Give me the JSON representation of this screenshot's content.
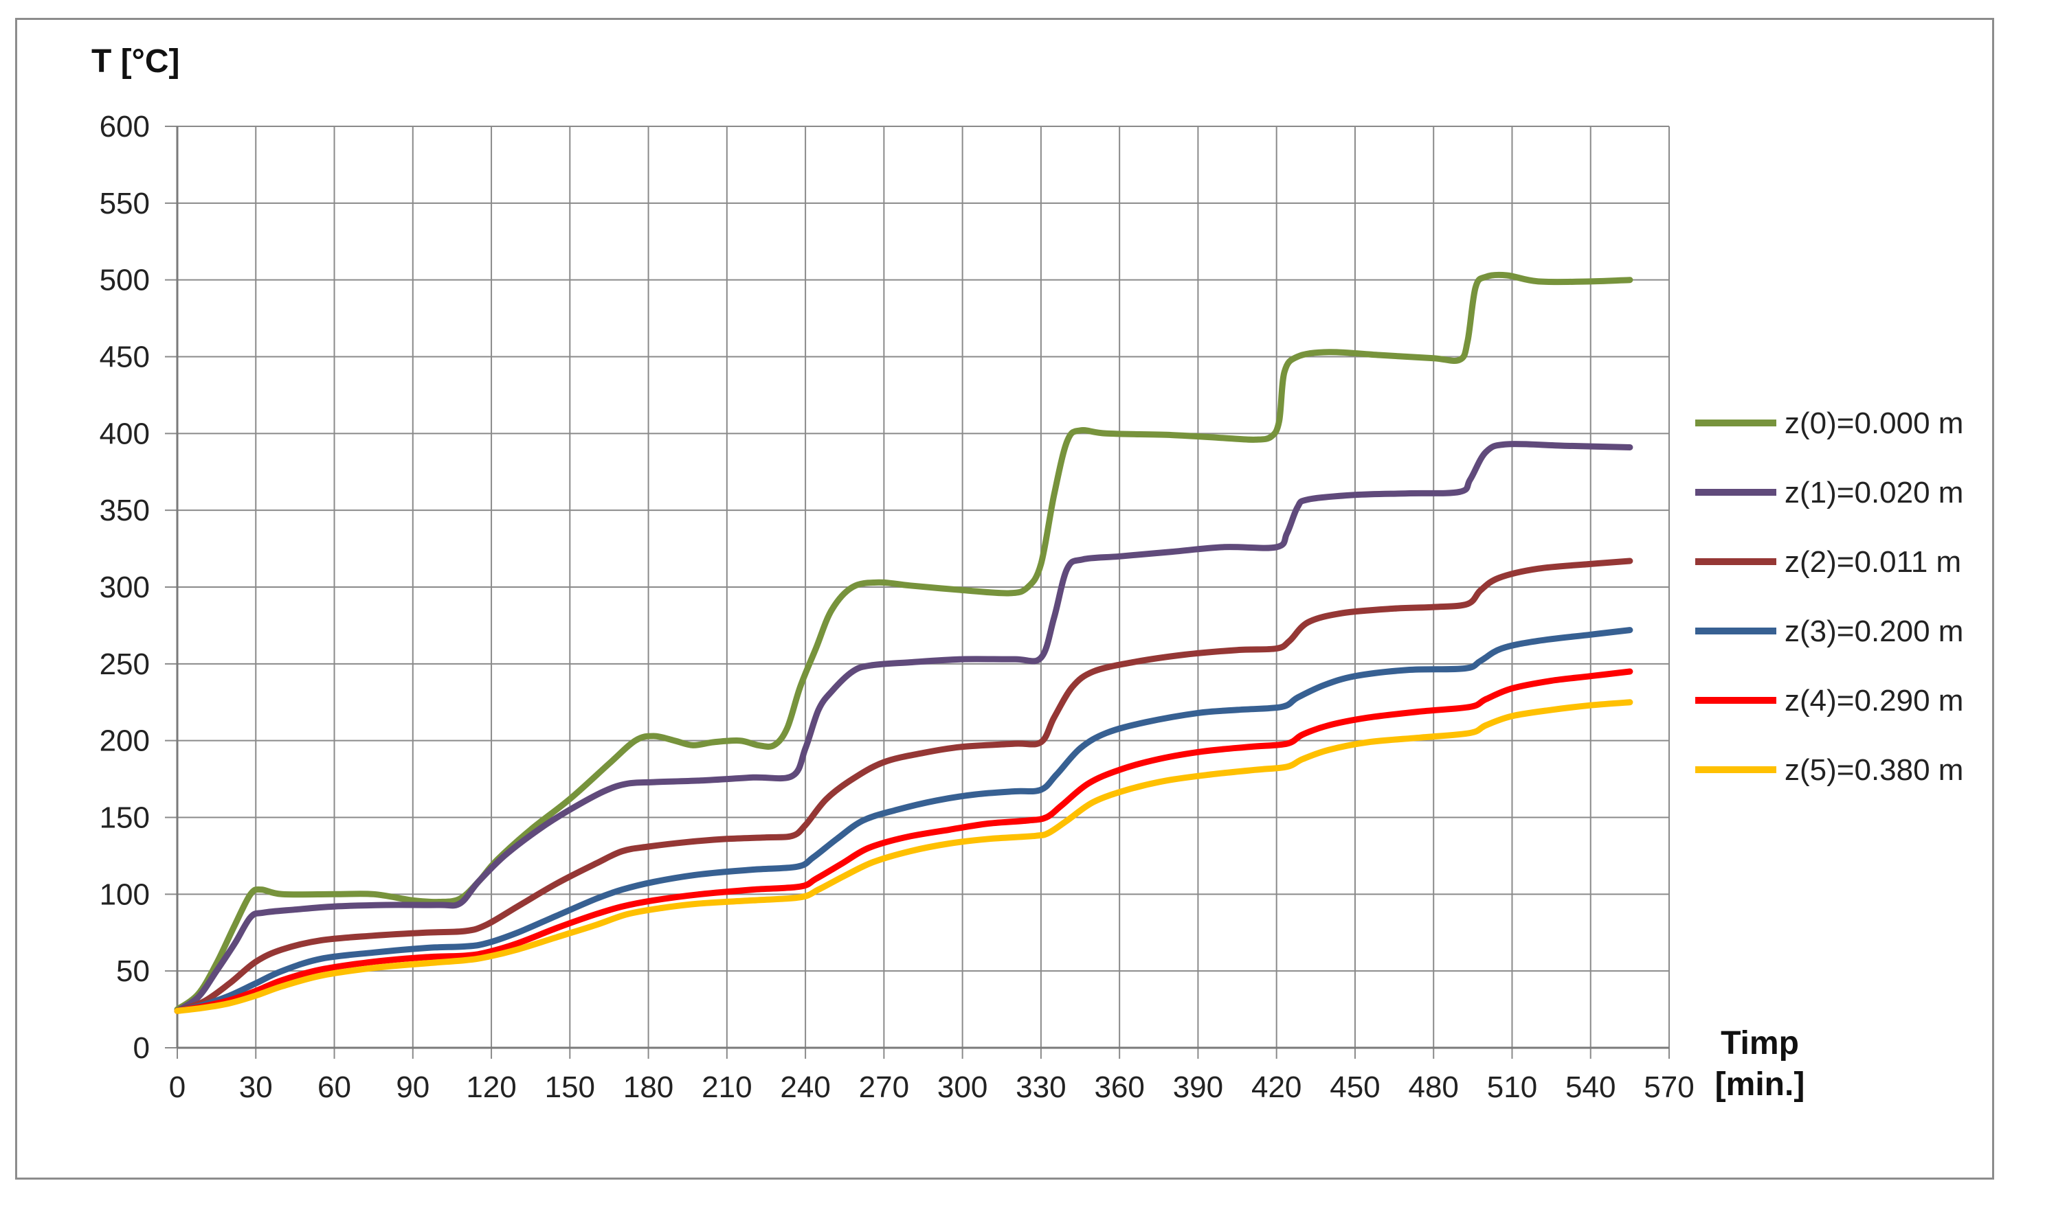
{
  "chart_data": {
    "type": "line",
    "title": "",
    "ylabel": "T [°C]",
    "xlabel_line1": "Timp",
    "xlabel_line2": "[min.]",
    "xlim": [
      0,
      570
    ],
    "ylim": [
      0,
      600
    ],
    "x_ticks": [
      0,
      30,
      60,
      90,
      120,
      150,
      180,
      210,
      240,
      270,
      300,
      330,
      360,
      390,
      420,
      450,
      480,
      510,
      540,
      570
    ],
    "y_ticks": [
      0,
      50,
      100,
      150,
      200,
      250,
      300,
      350,
      400,
      450,
      500,
      550,
      600
    ],
    "grid": true,
    "legend_position": "right",
    "series": [
      {
        "name": "z(0)=0.000 m",
        "color": "#77933C",
        "points": [
          [
            0,
            25
          ],
          [
            8,
            35
          ],
          [
            15,
            55
          ],
          [
            22,
            80
          ],
          [
            28,
            100
          ],
          [
            32,
            103
          ],
          [
            40,
            100
          ],
          [
            60,
            100
          ],
          [
            75,
            100
          ],
          [
            90,
            96
          ],
          [
            100,
            95
          ],
          [
            108,
            97
          ],
          [
            115,
            108
          ],
          [
            122,
            122
          ],
          [
            135,
            142
          ],
          [
            150,
            162
          ],
          [
            165,
            185
          ],
          [
            175,
            200
          ],
          [
            182,
            203
          ],
          [
            190,
            200
          ],
          [
            197,
            197
          ],
          [
            205,
            199
          ],
          [
            215,
            200
          ],
          [
            222,
            197
          ],
          [
            228,
            197
          ],
          [
            233,
            208
          ],
          [
            238,
            235
          ],
          [
            244,
            260
          ],
          [
            250,
            285
          ],
          [
            258,
            300
          ],
          [
            268,
            303
          ],
          [
            280,
            301
          ],
          [
            300,
            298
          ],
          [
            318,
            296
          ],
          [
            325,
            300
          ],
          [
            330,
            315
          ],
          [
            335,
            360
          ],
          [
            340,
            395
          ],
          [
            345,
            402
          ],
          [
            355,
            400
          ],
          [
            380,
            399
          ],
          [
            400,
            397
          ],
          [
            412,
            396
          ],
          [
            418,
            398
          ],
          [
            421,
            408
          ],
          [
            423,
            440
          ],
          [
            428,
            450
          ],
          [
            440,
            453
          ],
          [
            460,
            451
          ],
          [
            480,
            449
          ],
          [
            490,
            448
          ],
          [
            493,
            460
          ],
          [
            496,
            495
          ],
          [
            500,
            502
          ],
          [
            508,
            503
          ],
          [
            520,
            499
          ],
          [
            540,
            499
          ],
          [
            555,
            500
          ]
        ]
      },
      {
        "name": "z(1)=0.020 m",
        "color": "#604A7B",
        "points": [
          [
            0,
            24
          ],
          [
            8,
            33
          ],
          [
            15,
            50
          ],
          [
            22,
            68
          ],
          [
            28,
            85
          ],
          [
            33,
            88
          ],
          [
            45,
            90
          ],
          [
            60,
            92
          ],
          [
            80,
            93
          ],
          [
            100,
            93
          ],
          [
            108,
            94
          ],
          [
            115,
            108
          ],
          [
            125,
            125
          ],
          [
            138,
            142
          ],
          [
            150,
            155
          ],
          [
            163,
            167
          ],
          [
            172,
            172
          ],
          [
            182,
            173
          ],
          [
            200,
            174
          ],
          [
            220,
            176
          ],
          [
            235,
            177
          ],
          [
            240,
            195
          ],
          [
            245,
            220
          ],
          [
            250,
            232
          ],
          [
            258,
            245
          ],
          [
            265,
            249
          ],
          [
            280,
            251
          ],
          [
            300,
            253
          ],
          [
            320,
            253
          ],
          [
            330,
            254
          ],
          [
            335,
            280
          ],
          [
            340,
            312
          ],
          [
            346,
            318
          ],
          [
            360,
            320
          ],
          [
            380,
            323
          ],
          [
            400,
            326
          ],
          [
            420,
            326
          ],
          [
            424,
            335
          ],
          [
            428,
            352
          ],
          [
            432,
            357
          ],
          [
            450,
            360
          ],
          [
            470,
            361
          ],
          [
            490,
            362
          ],
          [
            494,
            370
          ],
          [
            500,
            388
          ],
          [
            508,
            393
          ],
          [
            530,
            392
          ],
          [
            555,
            391
          ]
        ]
      },
      {
        "name": "z(2)=0.011 m",
        "color": "#953735",
        "points": [
          [
            0,
            24
          ],
          [
            10,
            30
          ],
          [
            20,
            42
          ],
          [
            30,
            56
          ],
          [
            40,
            64
          ],
          [
            55,
            70
          ],
          [
            75,
            73
          ],
          [
            95,
            75
          ],
          [
            110,
            76
          ],
          [
            118,
            80
          ],
          [
            130,
            92
          ],
          [
            145,
            107
          ],
          [
            160,
            120
          ],
          [
            170,
            128
          ],
          [
            180,
            131
          ],
          [
            195,
            134
          ],
          [
            210,
            136
          ],
          [
            225,
            137
          ],
          [
            235,
            138
          ],
          [
            240,
            145
          ],
          [
            248,
            162
          ],
          [
            258,
            175
          ],
          [
            270,
            186
          ],
          [
            285,
            192
          ],
          [
            300,
            196
          ],
          [
            320,
            198
          ],
          [
            330,
            199
          ],
          [
            335,
            215
          ],
          [
            342,
            235
          ],
          [
            350,
            245
          ],
          [
            365,
            251
          ],
          [
            385,
            256
          ],
          [
            405,
            259
          ],
          [
            420,
            260
          ],
          [
            425,
            265
          ],
          [
            432,
            277
          ],
          [
            445,
            283
          ],
          [
            465,
            286
          ],
          [
            480,
            287
          ],
          [
            493,
            289
          ],
          [
            498,
            298
          ],
          [
            505,
            306
          ],
          [
            520,
            312
          ],
          [
            540,
            315
          ],
          [
            555,
            317
          ]
        ]
      },
      {
        "name": "z(3)=0.200 m",
        "color": "#376092",
        "points": [
          [
            0,
            24
          ],
          [
            10,
            28
          ],
          [
            20,
            34
          ],
          [
            30,
            42
          ],
          [
            40,
            50
          ],
          [
            55,
            58
          ],
          [
            75,
            62
          ],
          [
            95,
            65
          ],
          [
            110,
            66
          ],
          [
            118,
            68
          ],
          [
            130,
            75
          ],
          [
            145,
            86
          ],
          [
            160,
            97
          ],
          [
            170,
            103
          ],
          [
            182,
            108
          ],
          [
            200,
            113
          ],
          [
            220,
            116
          ],
          [
            237,
            118
          ],
          [
            243,
            124
          ],
          [
            252,
            136
          ],
          [
            262,
            148
          ],
          [
            275,
            155
          ],
          [
            290,
            161
          ],
          [
            305,
            165
          ],
          [
            320,
            167
          ],
          [
            330,
            168
          ],
          [
            336,
            178
          ],
          [
            345,
            195
          ],
          [
            355,
            205
          ],
          [
            370,
            212
          ],
          [
            390,
            218
          ],
          [
            405,
            220
          ],
          [
            422,
            222
          ],
          [
            428,
            228
          ],
          [
            438,
            236
          ],
          [
            450,
            242
          ],
          [
            470,
            246
          ],
          [
            492,
            247
          ],
          [
            498,
            252
          ],
          [
            506,
            260
          ],
          [
            520,
            265
          ],
          [
            540,
            269
          ],
          [
            555,
            272
          ]
        ]
      },
      {
        "name": "z(4)=0.290 m",
        "color": "#FF0000",
        "points": [
          [
            0,
            24
          ],
          [
            10,
            27
          ],
          [
            20,
            31
          ],
          [
            30,
            37
          ],
          [
            40,
            44
          ],
          [
            55,
            51
          ],
          [
            75,
            56
          ],
          [
            95,
            59
          ],
          [
            110,
            60
          ],
          [
            118,
            62
          ],
          [
            130,
            68
          ],
          [
            145,
            78
          ],
          [
            160,
            87
          ],
          [
            170,
            92
          ],
          [
            182,
            96
          ],
          [
            200,
            100
          ],
          [
            220,
            103
          ],
          [
            238,
            105
          ],
          [
            244,
            110
          ],
          [
            254,
            120
          ],
          [
            264,
            130
          ],
          [
            278,
            137
          ],
          [
            295,
            142
          ],
          [
            310,
            146
          ],
          [
            325,
            148
          ],
          [
            332,
            150
          ],
          [
            338,
            158
          ],
          [
            348,
            172
          ],
          [
            360,
            181
          ],
          [
            375,
            188
          ],
          [
            392,
            193
          ],
          [
            410,
            196
          ],
          [
            424,
            198
          ],
          [
            430,
            204
          ],
          [
            440,
            210
          ],
          [
            455,
            215
          ],
          [
            475,
            219
          ],
          [
            494,
            222
          ],
          [
            500,
            227
          ],
          [
            510,
            234
          ],
          [
            525,
            239
          ],
          [
            540,
            242
          ],
          [
            555,
            245
          ]
        ]
      },
      {
        "name": "z(5)=0.380 m",
        "color": "#FFC000",
        "points": [
          [
            0,
            24
          ],
          [
            10,
            26
          ],
          [
            20,
            29
          ],
          [
            30,
            34
          ],
          [
            40,
            40
          ],
          [
            55,
            47
          ],
          [
            75,
            52
          ],
          [
            95,
            55
          ],
          [
            110,
            57
          ],
          [
            118,
            59
          ],
          [
            130,
            64
          ],
          [
            145,
            72
          ],
          [
            160,
            80
          ],
          [
            172,
            87
          ],
          [
            185,
            91
          ],
          [
            200,
            94
          ],
          [
            220,
            96
          ],
          [
            238,
            98
          ],
          [
            245,
            103
          ],
          [
            255,
            112
          ],
          [
            266,
            121
          ],
          [
            280,
            128
          ],
          [
            295,
            133
          ],
          [
            310,
            136
          ],
          [
            328,
            138
          ],
          [
            333,
            140
          ],
          [
            340,
            148
          ],
          [
            350,
            160
          ],
          [
            363,
            168
          ],
          [
            378,
            174
          ],
          [
            395,
            178
          ],
          [
            412,
            181
          ],
          [
            424,
            183
          ],
          [
            430,
            188
          ],
          [
            440,
            194
          ],
          [
            455,
            199
          ],
          [
            475,
            202
          ],
          [
            494,
            205
          ],
          [
            500,
            210
          ],
          [
            510,
            216
          ],
          [
            525,
            220
          ],
          [
            540,
            223
          ],
          [
            555,
            225
          ]
        ]
      }
    ]
  }
}
